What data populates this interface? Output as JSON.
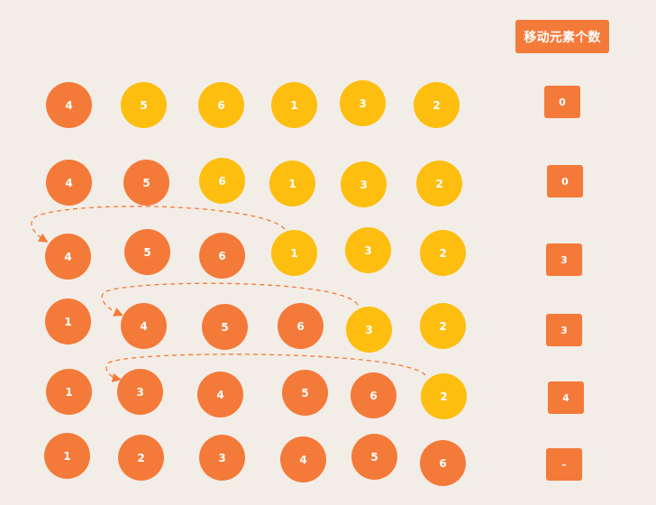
{
  "header": {
    "label": "移动元素个数"
  },
  "rows": [
    {
      "balls": [
        {
          "value": "4",
          "color": "orange"
        },
        {
          "value": "5",
          "color": "yellow"
        },
        {
          "value": "6",
          "color": "yellow"
        },
        {
          "value": "1",
          "color": "yellow"
        },
        {
          "value": "3",
          "color": "yellow"
        },
        {
          "value": "2",
          "color": "yellow"
        }
      ],
      "moved_count": "0"
    },
    {
      "balls": [
        {
          "value": "4",
          "color": "orange"
        },
        {
          "value": "5",
          "color": "orange"
        },
        {
          "value": "6",
          "color": "yellow"
        },
        {
          "value": "1",
          "color": "yellow"
        },
        {
          "value": "3",
          "color": "yellow"
        },
        {
          "value": "2",
          "color": "yellow"
        }
      ],
      "moved_count": "0"
    },
    {
      "balls": [
        {
          "value": "4",
          "color": "orange"
        },
        {
          "value": "5",
          "color": "orange"
        },
        {
          "value": "6",
          "color": "orange"
        },
        {
          "value": "1",
          "color": "yellow"
        },
        {
          "value": "3",
          "color": "yellow"
        },
        {
          "value": "2",
          "color": "yellow"
        }
      ],
      "moved_count": "3"
    },
    {
      "balls": [
        {
          "value": "1",
          "color": "orange"
        },
        {
          "value": "4",
          "color": "orange"
        },
        {
          "value": "5",
          "color": "orange"
        },
        {
          "value": "6",
          "color": "orange"
        },
        {
          "value": "3",
          "color": "yellow"
        },
        {
          "value": "2",
          "color": "yellow"
        }
      ],
      "moved_count": "3"
    },
    {
      "balls": [
        {
          "value": "1",
          "color": "orange"
        },
        {
          "value": "3",
          "color": "orange"
        },
        {
          "value": "4",
          "color": "orange"
        },
        {
          "value": "5",
          "color": "orange"
        },
        {
          "value": "6",
          "color": "orange"
        },
        {
          "value": "2",
          "color": "yellow"
        }
      ],
      "moved_count": "4"
    },
    {
      "balls": [
        {
          "value": "1",
          "color": "orange"
        },
        {
          "value": "2",
          "color": "orange"
        },
        {
          "value": "3",
          "color": "orange"
        },
        {
          "value": "4",
          "color": "orange"
        },
        {
          "value": "5",
          "color": "orange"
        },
        {
          "value": "6",
          "color": "orange"
        }
      ],
      "moved_count": "–"
    }
  ],
  "colors": {
    "background": "#F3EDE7",
    "orange": "#F47A3A",
    "yellow": "#FDBE10",
    "text": "#FFFFFF"
  }
}
